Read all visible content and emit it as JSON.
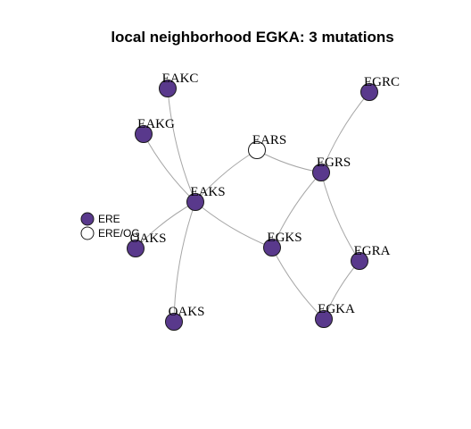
{
  "title": "local neighborhood EGKA: 3 mutations",
  "colors": {
    "ERE": "#59398c",
    "ERE/OG": "#ffffff",
    "edge": "#a6a6a6"
  },
  "legend": [
    {
      "label": "ERE",
      "category": "ERE"
    },
    {
      "label": "ERE/OG",
      "category": "ERE/OG"
    }
  ],
  "nodes": [
    {
      "id": "EAKC",
      "label": "EAKC",
      "category": "ERE"
    },
    {
      "id": "EGRC",
      "label": "EGRC",
      "category": "ERE"
    },
    {
      "id": "EAKG",
      "label": "EAKG",
      "category": "ERE"
    },
    {
      "id": "EARS",
      "label": "EARS",
      "category": "ERE/OG"
    },
    {
      "id": "EGRS",
      "label": "EGRS",
      "category": "ERE"
    },
    {
      "id": "EAKS",
      "label": "EAKS",
      "category": "ERE"
    },
    {
      "id": "OAKS1",
      "label": "OAKS",
      "category": "ERE"
    },
    {
      "id": "EGKS",
      "label": "EGKS",
      "category": "ERE"
    },
    {
      "id": "EGRA",
      "label": "EGRA",
      "category": "ERE"
    },
    {
      "id": "OAKS2",
      "label": "OAKS",
      "category": "ERE"
    },
    {
      "id": "EGKA",
      "label": "EGKA",
      "category": "ERE"
    }
  ],
  "edges": [
    [
      "EAKC",
      "EAKS"
    ],
    [
      "EAKG",
      "EAKS"
    ],
    [
      "EARS",
      "EAKS"
    ],
    [
      "EARS",
      "EGRS"
    ],
    [
      "EGRC",
      "EGRS"
    ],
    [
      "EAKS",
      "OAKS1"
    ],
    [
      "EAKS",
      "OAKS2"
    ],
    [
      "EAKS",
      "EGKS"
    ],
    [
      "EGRS",
      "EGKS"
    ],
    [
      "EGRS",
      "EGRA"
    ],
    [
      "EGKS",
      "EGKA"
    ],
    [
      "EGRA",
      "EGKA"
    ]
  ]
}
